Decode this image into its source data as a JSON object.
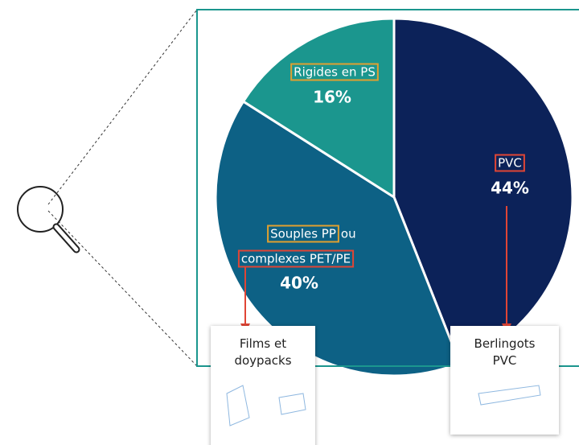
{
  "chart_data": {
    "type": "pie",
    "categories": [
      "PVC",
      [
        "Souples PP",
        "ou",
        "complexes PET/PE"
      ],
      "Rigides en PS"
    ],
    "values": [
      44,
      40,
      16
    ],
    "value_labels": [
      "44%",
      "40%",
      "16%"
    ],
    "colors": [
      "#0c2259",
      "#0d6185",
      "#1b968e"
    ],
    "annotations": [
      "Films et doypacks",
      "Berlingots PVC"
    ]
  }
}
